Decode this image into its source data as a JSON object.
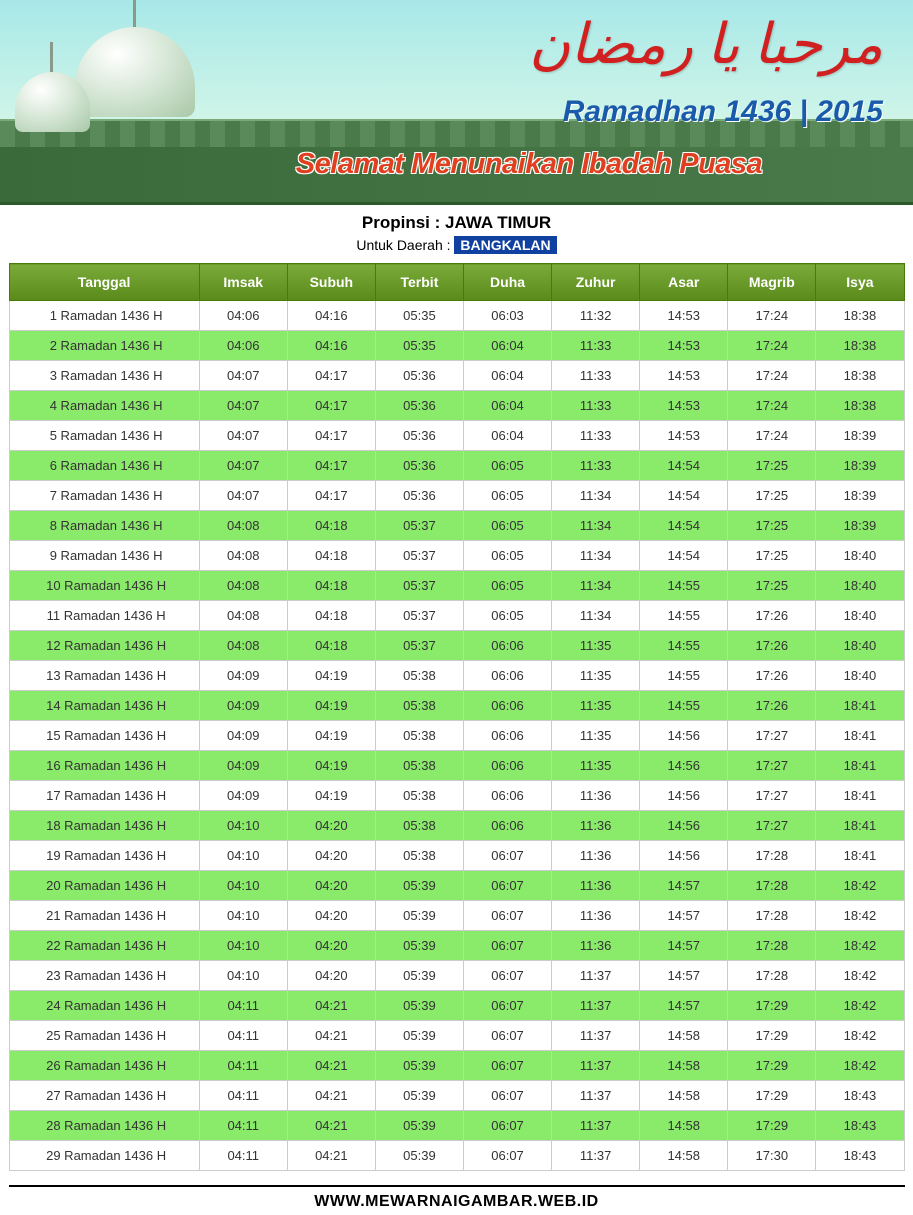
{
  "banner": {
    "arabic_greeting": "مرحبا يا رمضان",
    "year_line": "Ramadhan 1436 | 2015",
    "greeting_line": "Selamat Menunaikan Ibadah Puasa"
  },
  "header": {
    "province_label": "Propinsi :",
    "province_value": "JAWA TIMUR",
    "region_label": "Untuk Daerah :",
    "region_value": "BANGKALAN"
  },
  "table": {
    "type": "table",
    "header_bg": "#6a9a2a",
    "header_text_color": "#ffffff",
    "row_odd_bg": "#ffffff",
    "row_even_bg": "#8aea6a",
    "border_color": "#cccccc",
    "font_size": 13,
    "columns": [
      "Tanggal",
      "Imsak",
      "Subuh",
      "Terbit",
      "Duha",
      "Zuhur",
      "Asar",
      "Magrib",
      "Isya"
    ],
    "rows": [
      [
        "1 Ramadan 1436 H",
        "04:06",
        "04:16",
        "05:35",
        "06:03",
        "11:32",
        "14:53",
        "17:24",
        "18:38"
      ],
      [
        "2 Ramadan 1436 H",
        "04:06",
        "04:16",
        "05:35",
        "06:04",
        "11:33",
        "14:53",
        "17:24",
        "18:38"
      ],
      [
        "3 Ramadan 1436 H",
        "04:07",
        "04:17",
        "05:36",
        "06:04",
        "11:33",
        "14:53",
        "17:24",
        "18:38"
      ],
      [
        "4 Ramadan 1436 H",
        "04:07",
        "04:17",
        "05:36",
        "06:04",
        "11:33",
        "14:53",
        "17:24",
        "18:38"
      ],
      [
        "5 Ramadan 1436 H",
        "04:07",
        "04:17",
        "05:36",
        "06:04",
        "11:33",
        "14:53",
        "17:24",
        "18:39"
      ],
      [
        "6 Ramadan 1436 H",
        "04:07",
        "04:17",
        "05:36",
        "06:05",
        "11:33",
        "14:54",
        "17:25",
        "18:39"
      ],
      [
        "7 Ramadan 1436 H",
        "04:07",
        "04:17",
        "05:36",
        "06:05",
        "11:34",
        "14:54",
        "17:25",
        "18:39"
      ],
      [
        "8 Ramadan 1436 H",
        "04:08",
        "04:18",
        "05:37",
        "06:05",
        "11:34",
        "14:54",
        "17:25",
        "18:39"
      ],
      [
        "9 Ramadan 1436 H",
        "04:08",
        "04:18",
        "05:37",
        "06:05",
        "11:34",
        "14:54",
        "17:25",
        "18:40"
      ],
      [
        "10 Ramadan 1436 H",
        "04:08",
        "04:18",
        "05:37",
        "06:05",
        "11:34",
        "14:55",
        "17:25",
        "18:40"
      ],
      [
        "11 Ramadan 1436 H",
        "04:08",
        "04:18",
        "05:37",
        "06:05",
        "11:34",
        "14:55",
        "17:26",
        "18:40"
      ],
      [
        "12 Ramadan 1436 H",
        "04:08",
        "04:18",
        "05:37",
        "06:06",
        "11:35",
        "14:55",
        "17:26",
        "18:40"
      ],
      [
        "13 Ramadan 1436 H",
        "04:09",
        "04:19",
        "05:38",
        "06:06",
        "11:35",
        "14:55",
        "17:26",
        "18:40"
      ],
      [
        "14 Ramadan 1436 H",
        "04:09",
        "04:19",
        "05:38",
        "06:06",
        "11:35",
        "14:55",
        "17:26",
        "18:41"
      ],
      [
        "15 Ramadan 1436 H",
        "04:09",
        "04:19",
        "05:38",
        "06:06",
        "11:35",
        "14:56",
        "17:27",
        "18:41"
      ],
      [
        "16 Ramadan 1436 H",
        "04:09",
        "04:19",
        "05:38",
        "06:06",
        "11:35",
        "14:56",
        "17:27",
        "18:41"
      ],
      [
        "17 Ramadan 1436 H",
        "04:09",
        "04:19",
        "05:38",
        "06:06",
        "11:36",
        "14:56",
        "17:27",
        "18:41"
      ],
      [
        "18 Ramadan 1436 H",
        "04:10",
        "04:20",
        "05:38",
        "06:06",
        "11:36",
        "14:56",
        "17:27",
        "18:41"
      ],
      [
        "19 Ramadan 1436 H",
        "04:10",
        "04:20",
        "05:38",
        "06:07",
        "11:36",
        "14:56",
        "17:28",
        "18:41"
      ],
      [
        "20 Ramadan 1436 H",
        "04:10",
        "04:20",
        "05:39",
        "06:07",
        "11:36",
        "14:57",
        "17:28",
        "18:42"
      ],
      [
        "21 Ramadan 1436 H",
        "04:10",
        "04:20",
        "05:39",
        "06:07",
        "11:36",
        "14:57",
        "17:28",
        "18:42"
      ],
      [
        "22 Ramadan 1436 H",
        "04:10",
        "04:20",
        "05:39",
        "06:07",
        "11:36",
        "14:57",
        "17:28",
        "18:42"
      ],
      [
        "23 Ramadan 1436 H",
        "04:10",
        "04:20",
        "05:39",
        "06:07",
        "11:37",
        "14:57",
        "17:28",
        "18:42"
      ],
      [
        "24 Ramadan 1436 H",
        "04:11",
        "04:21",
        "05:39",
        "06:07",
        "11:37",
        "14:57",
        "17:29",
        "18:42"
      ],
      [
        "25 Ramadan 1436 H",
        "04:11",
        "04:21",
        "05:39",
        "06:07",
        "11:37",
        "14:58",
        "17:29",
        "18:42"
      ],
      [
        "26 Ramadan 1436 H",
        "04:11",
        "04:21",
        "05:39",
        "06:07",
        "11:37",
        "14:58",
        "17:29",
        "18:42"
      ],
      [
        "27 Ramadan 1436 H",
        "04:11",
        "04:21",
        "05:39",
        "06:07",
        "11:37",
        "14:58",
        "17:29",
        "18:43"
      ],
      [
        "28 Ramadan 1436 H",
        "04:11",
        "04:21",
        "05:39",
        "06:07",
        "11:37",
        "14:58",
        "17:29",
        "18:43"
      ],
      [
        "29 Ramadan 1436 H",
        "04:11",
        "04:21",
        "05:39",
        "06:07",
        "11:37",
        "14:58",
        "17:30",
        "18:43"
      ]
    ]
  },
  "footer": {
    "site": "WWW.MEWARNAIGAMBAR.WEB.ID"
  }
}
